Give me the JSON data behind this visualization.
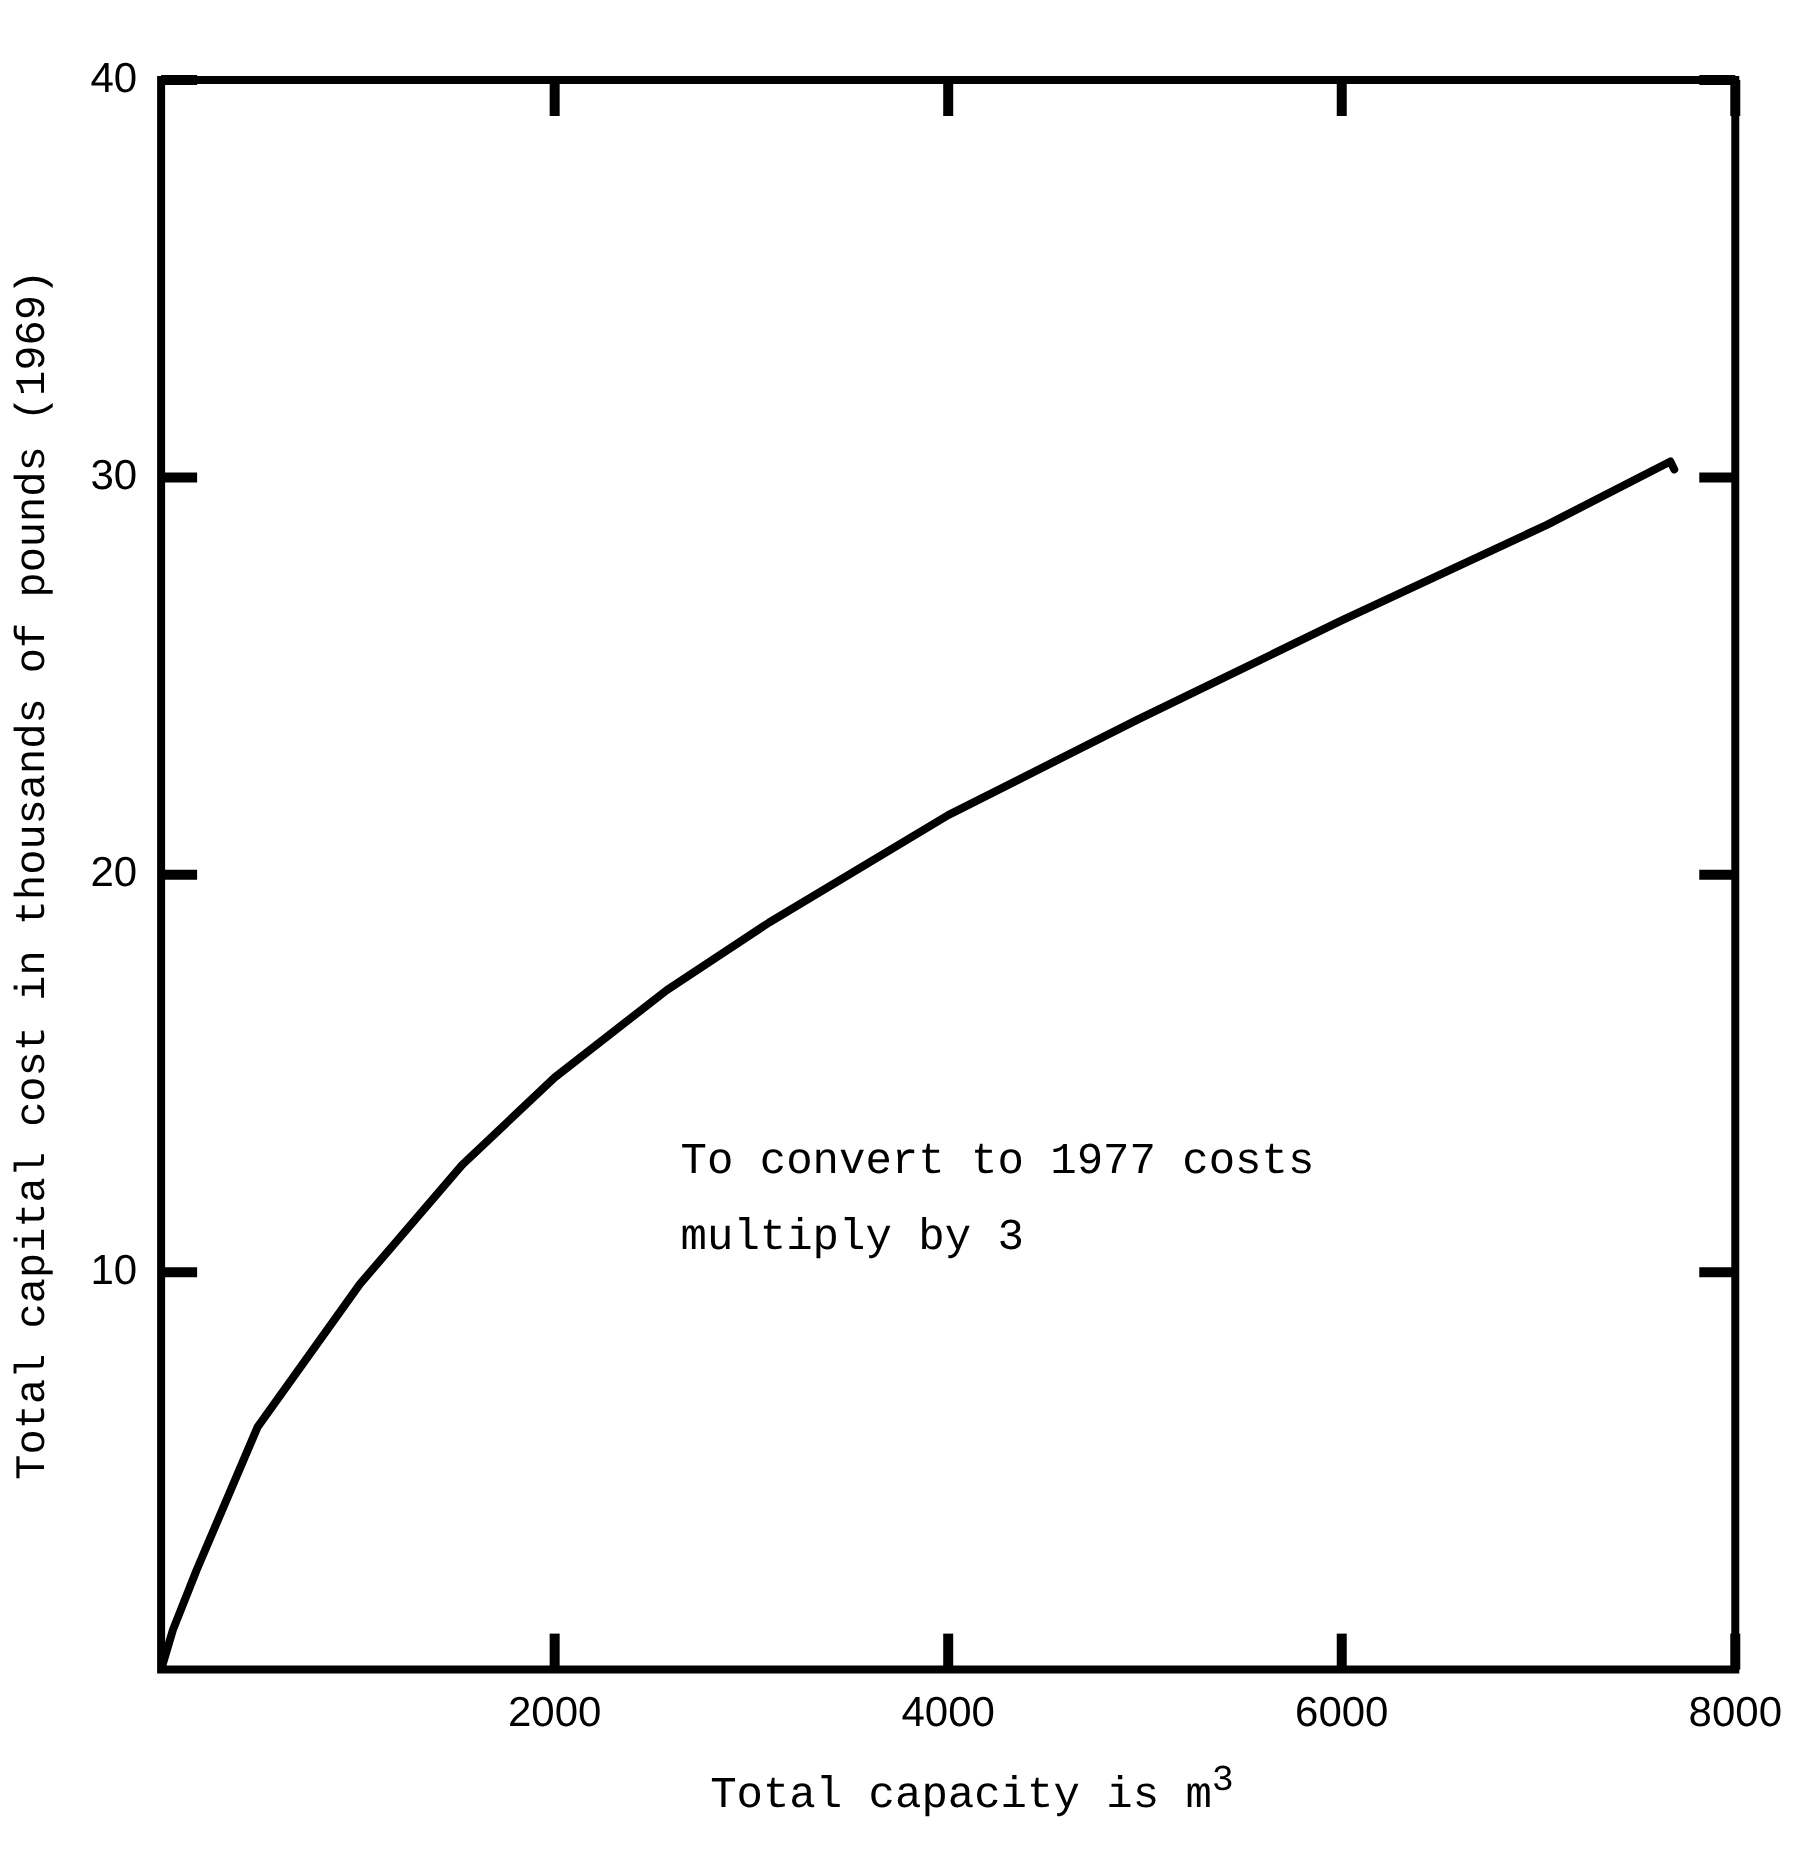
{
  "chart_data": {
    "type": "line",
    "xlabel": "Total capacity is m$^{3}$",
    "ylabel": "Total capital cost in thousands of pounds (1969)",
    "x": [
      0,
      60,
      180,
      490,
      1010,
      1530,
      2000,
      2570,
      3090,
      4000,
      4960,
      6000,
      7040,
      7670,
      7690
    ],
    "values": [
      0,
      1.0,
      2.5,
      6.1,
      9.7,
      12.7,
      14.9,
      17.1,
      18.8,
      21.5,
      23.9,
      26.4,
      28.8,
      30.4,
      30.2
    ],
    "color": "#000000",
    "marker": "none",
    "line_style": "solid",
    "grid": false,
    "legend": false,
    "xlim": [
      0,
      8000
    ],
    "xticks": [
      2000,
      4000,
      6000,
      8000
    ],
    "ylim": [
      0,
      40
    ],
    "yticks": [
      10,
      20,
      30,
      40
    ],
    "annotations": [
      "To convert to 1977 costs",
      "multiply by 3"
    ]
  }
}
